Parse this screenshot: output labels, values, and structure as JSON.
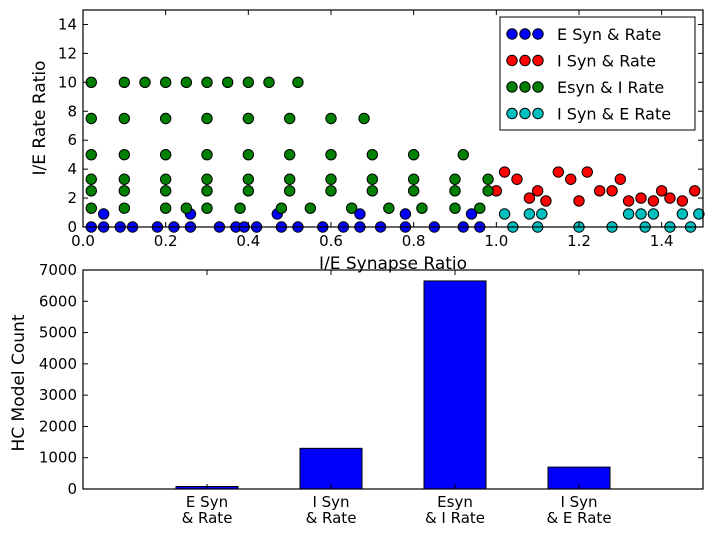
{
  "chart_data": [
    {
      "type": "scatter",
      "xlabel": "I/E Synapse Ratio",
      "ylabel": "I/E Rate Ratio",
      "xlim": [
        0,
        1.5
      ],
      "ylim": [
        0,
        15
      ],
      "xticks": [
        "0.0",
        "0.2",
        "0.4",
        "0.6",
        "0.8",
        "1.0",
        "1.2",
        "1.4"
      ],
      "yticks": [
        "0",
        "2",
        "4",
        "6",
        "8",
        "10",
        "12",
        "14"
      ],
      "grid": false,
      "legend_position": "top-right",
      "series": [
        {
          "name": "E Syn & Rate",
          "color": "#0000ff",
          "points": [
            [
              0.02,
              0
            ],
            [
              0.05,
              0
            ],
            [
              0.09,
              0
            ],
            [
              0.12,
              0
            ],
            [
              0.18,
              0
            ],
            [
              0.22,
              0
            ],
            [
              0.26,
              0
            ],
            [
              0.33,
              0
            ],
            [
              0.37,
              0
            ],
            [
              0.39,
              0
            ],
            [
              0.42,
              0
            ],
            [
              0.48,
              0
            ],
            [
              0.52,
              0
            ],
            [
              0.58,
              0
            ],
            [
              0.63,
              0
            ],
            [
              0.67,
              0
            ],
            [
              0.72,
              0
            ],
            [
              0.78,
              0
            ],
            [
              0.85,
              0
            ],
            [
              0.92,
              0
            ],
            [
              0.96,
              0
            ],
            [
              0.05,
              0.9
            ],
            [
              0.26,
              0.9
            ],
            [
              0.47,
              0.9
            ],
            [
              0.67,
              0.9
            ],
            [
              0.78,
              0.9
            ],
            [
              0.94,
              0.9
            ]
          ]
        },
        {
          "name": "I Syn & Rate",
          "color": "#ff0000",
          "points": [
            [
              1.0,
              2.5
            ],
            [
              1.05,
              3.3
            ],
            [
              1.1,
              2.5
            ],
            [
              1.15,
              3.8
            ],
            [
              1.2,
              1.8
            ],
            [
              1.25,
              2.5
            ],
            [
              1.3,
              3.3
            ],
            [
              1.35,
              2.0
            ],
            [
              1.4,
              2.5
            ],
            [
              1.45,
              1.8
            ],
            [
              1.48,
              2.5
            ],
            [
              1.02,
              3.8
            ],
            [
              1.12,
              1.8
            ],
            [
              1.18,
              3.3
            ],
            [
              1.28,
              2.5
            ],
            [
              1.38,
              1.8
            ],
            [
              1.08,
              2.0
            ],
            [
              1.22,
              3.8
            ],
            [
              1.32,
              1.8
            ],
            [
              1.42,
              2.0
            ]
          ]
        },
        {
          "name": "Esyn & I Rate",
          "color": "#008000",
          "points": [
            [
              0.02,
              10
            ],
            [
              0.1,
              10
            ],
            [
              0.15,
              10
            ],
            [
              0.2,
              10
            ],
            [
              0.25,
              10
            ],
            [
              0.3,
              10
            ],
            [
              0.35,
              10
            ],
            [
              0.4,
              10
            ],
            [
              0.45,
              10
            ],
            [
              0.52,
              10
            ],
            [
              0.02,
              7.5
            ],
            [
              0.1,
              7.5
            ],
            [
              0.2,
              7.5
            ],
            [
              0.3,
              7.5
            ],
            [
              0.4,
              7.5
            ],
            [
              0.5,
              7.5
            ],
            [
              0.6,
              7.5
            ],
            [
              0.68,
              7.5
            ],
            [
              0.02,
              5
            ],
            [
              0.1,
              5
            ],
            [
              0.2,
              5
            ],
            [
              0.3,
              5
            ],
            [
              0.4,
              5
            ],
            [
              0.5,
              5
            ],
            [
              0.6,
              5
            ],
            [
              0.7,
              5
            ],
            [
              0.8,
              5
            ],
            [
              0.92,
              5
            ],
            [
              0.02,
              3.3
            ],
            [
              0.1,
              3.3
            ],
            [
              0.2,
              3.3
            ],
            [
              0.3,
              3.3
            ],
            [
              0.4,
              3.3
            ],
            [
              0.5,
              3.3
            ],
            [
              0.6,
              3.3
            ],
            [
              0.7,
              3.3
            ],
            [
              0.8,
              3.3
            ],
            [
              0.9,
              3.3
            ],
            [
              0.98,
              3.3
            ],
            [
              0.02,
              2.5
            ],
            [
              0.1,
              2.5
            ],
            [
              0.2,
              2.5
            ],
            [
              0.3,
              2.5
            ],
            [
              0.4,
              2.5
            ],
            [
              0.5,
              2.5
            ],
            [
              0.6,
              2.5
            ],
            [
              0.7,
              2.5
            ],
            [
              0.8,
              2.5
            ],
            [
              0.9,
              2.5
            ],
            [
              0.98,
              2.5
            ],
            [
              0.02,
              1.3
            ],
            [
              0.1,
              1.3
            ],
            [
              0.2,
              1.3
            ],
            [
              0.25,
              1.3
            ],
            [
              0.3,
              1.3
            ],
            [
              0.38,
              1.3
            ],
            [
              0.48,
              1.3
            ],
            [
              0.55,
              1.3
            ],
            [
              0.65,
              1.3
            ],
            [
              0.74,
              1.3
            ],
            [
              0.82,
              1.3
            ],
            [
              0.9,
              1.3
            ],
            [
              0.96,
              1.3
            ]
          ]
        },
        {
          "name": "I Syn & E Rate",
          "color": "#00bfbf",
          "points": [
            [
              1.02,
              0.9
            ],
            [
              1.08,
              0.9
            ],
            [
              1.11,
              0.9
            ],
            [
              1.32,
              0.9
            ],
            [
              1.35,
              0.9
            ],
            [
              1.38,
              0.9
            ],
            [
              1.45,
              0.9
            ],
            [
              1.49,
              0.9
            ],
            [
              1.04,
              0
            ],
            [
              1.1,
              0
            ],
            [
              1.2,
              0
            ],
            [
              1.28,
              0
            ],
            [
              1.36,
              0
            ],
            [
              1.42,
              0
            ],
            [
              1.47,
              0
            ]
          ]
        }
      ]
    },
    {
      "type": "bar",
      "xlabel": "",
      "ylabel": "HC Model Count",
      "ylim": [
        0,
        7000
      ],
      "yticks": [
        "0",
        "1000",
        "2000",
        "3000",
        "4000",
        "5000",
        "6000",
        "7000"
      ],
      "bar_color": "#0000ff",
      "categories": [
        [
          "E Syn",
          "& Rate"
        ],
        [
          "I Syn",
          "& Rate"
        ],
        [
          "Esyn",
          "& I Rate"
        ],
        [
          "I Syn",
          "& E Rate"
        ]
      ],
      "values": [
        80,
        1300,
        6650,
        700
      ]
    }
  ]
}
